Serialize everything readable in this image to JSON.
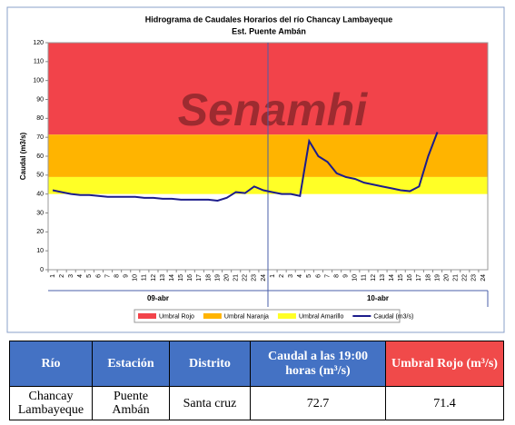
{
  "chart_data": {
    "type": "line",
    "title": "Hidrograma de Caudales Horarios del río Chancay Lambayeque",
    "subtitle": "Est. Puente Ambán",
    "watermark": "Senamhi",
    "y_label": "Caudal   (m3/s)",
    "categories": [
      "1",
      "2",
      "3",
      "4",
      "5",
      "6",
      "7",
      "8",
      "9",
      "10",
      "11",
      "12",
      "13",
      "14",
      "15",
      "16",
      "17",
      "18",
      "19",
      "20",
      "21",
      "22",
      "23",
      "24",
      "1",
      "2",
      "3",
      "4",
      "5",
      "6",
      "7",
      "8",
      "9",
      "10",
      "11",
      "12",
      "13",
      "14",
      "15",
      "16",
      "17",
      "18",
      "19",
      "20",
      "21",
      "22",
      "23",
      "24"
    ],
    "x_groups": [
      "09-abr",
      "10-abr"
    ],
    "thresholds": [
      {
        "name": "Umbral Rojo",
        "color": "#f2434a",
        "value": 71.4
      },
      {
        "name": "Umbral Naranja",
        "color": "#ffb400",
        "value": 49
      },
      {
        "name": "Umbral Amarillo",
        "color": "#ffff26",
        "value": 40
      }
    ],
    "series": [
      {
        "name": "Caudal (m3/s)",
        "color": "#1c1c8c",
        "values": [
          42,
          41,
          40,
          39.5,
          39.5,
          39,
          38.5,
          38.5,
          38.5,
          38.5,
          38,
          38,
          37.5,
          37.5,
          37,
          37,
          37,
          37,
          36.5,
          38,
          41,
          40.5,
          44,
          42,
          41,
          40,
          40,
          39,
          68,
          60,
          57,
          51,
          49,
          48,
          46,
          45,
          44,
          43,
          42,
          41.5,
          44,
          60,
          72.7,
          null,
          null,
          null,
          null,
          null
        ]
      }
    ],
    "ylim": [
      0,
      120
    ],
    "yticks": [
      0,
      10,
      20,
      30,
      40,
      50,
      60,
      70,
      80,
      90,
      100,
      110,
      120
    ],
    "grid": false,
    "legend": "bottom"
  },
  "table": {
    "headers": [
      "Río",
      "Estación",
      "Distrito",
      "Caudal a las 19:00 horas (m³/s)",
      "Umbral Rojo (m³/s)"
    ],
    "rows": [
      [
        "Chancay Lambayeque",
        "Puente Ambán",
        "Santa cruz",
        "72.7",
        "71.4"
      ]
    ]
  }
}
